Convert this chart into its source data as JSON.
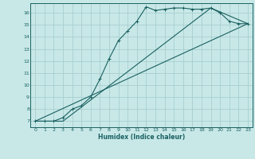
{
  "xlabel": "Humidex (Indice chaleur)",
  "background_color": "#c8e8e8",
  "grid_color": "#a8cece",
  "line_color": "#1a6060",
  "xlim": [
    -0.5,
    23.5
  ],
  "ylim": [
    6.5,
    16.8
  ],
  "xticks": [
    0,
    1,
    2,
    3,
    4,
    5,
    6,
    7,
    8,
    9,
    10,
    11,
    12,
    13,
    14,
    15,
    16,
    17,
    18,
    19,
    20,
    21,
    22,
    23
  ],
  "yticks": [
    7,
    8,
    9,
    10,
    11,
    12,
    13,
    14,
    15,
    16
  ],
  "curve1_x": [
    0,
    1,
    2,
    3,
    4,
    5,
    6,
    7,
    8,
    9,
    10,
    11,
    12,
    13,
    14,
    15,
    16,
    17,
    18,
    19,
    20,
    21,
    22,
    23
  ],
  "curve1_y": [
    7.0,
    7.0,
    7.0,
    7.3,
    8.0,
    8.3,
    9.0,
    10.5,
    12.2,
    13.7,
    14.5,
    15.3,
    16.5,
    16.2,
    16.3,
    16.4,
    16.4,
    16.3,
    16.3,
    16.4,
    16.0,
    15.3,
    15.1,
    15.1
  ],
  "curve2_x": [
    0,
    23
  ],
  "curve2_y": [
    7.0,
    15.1
  ],
  "curve3_x": [
    0,
    3,
    19,
    23
  ],
  "curve3_y": [
    7.0,
    7.0,
    16.4,
    15.1
  ]
}
